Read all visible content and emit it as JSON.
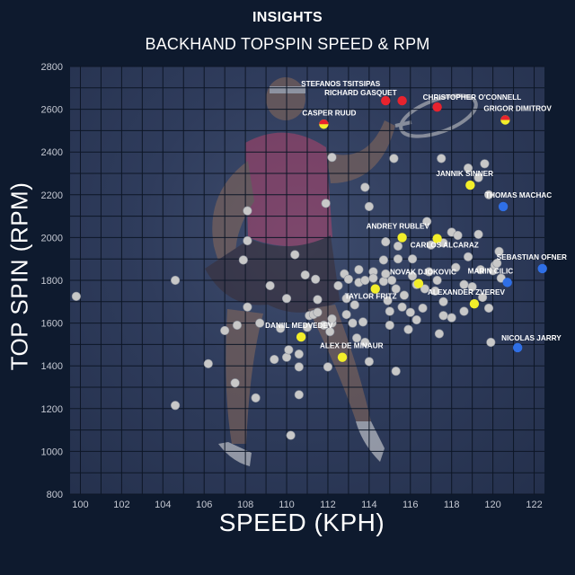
{
  "header": {
    "kicker": "INSIGHTS",
    "title": "BACKHAND TOPSPIN SPEED & RPM"
  },
  "colors": {
    "background": "#0e1a2e",
    "plot_overlay": "#2f3c5c",
    "grid": "#0d1626",
    "other_players": "#c8c8c8",
    "highlight_yellow": "#f2ee2a",
    "highlight_red": "#e8232e",
    "highlight_blue": "#2f6fe6"
  },
  "chart_data": {
    "type": "scatter",
    "title": "BACKHAND TOPSPIN SPEED & RPM",
    "xlabel": "SPEED (KPH)",
    "ylabel": "TOP SPIN (RPM)",
    "xlim": [
      99.5,
      122.5
    ],
    "ylim": [
      800,
      2800
    ],
    "xticks": [
      100,
      102,
      104,
      106,
      108,
      110,
      112,
      114,
      116,
      118,
      120,
      122
    ],
    "yticks": [
      800,
      1000,
      1200,
      1400,
      1600,
      1800,
      2000,
      2200,
      2400,
      2600,
      2800
    ],
    "grid": true,
    "labeled_points": [
      {
        "name": "STEFANOS TSITSIPAS",
        "x": 114.8,
        "y": 2640,
        "color": "red"
      },
      {
        "name": "RICHARD GASQUET",
        "x": 115.6,
        "y": 2640,
        "color": "red"
      },
      {
        "name": "CHRISTOPHER O'CONNELL",
        "x": 117.3,
        "y": 2610,
        "color": "red"
      },
      {
        "name": "CASPER RUUD",
        "x": 111.8,
        "y": 2530,
        "color": "red-yellow"
      },
      {
        "name": "GRIGOR DIMITROV",
        "x": 120.6,
        "y": 2550,
        "color": "red-yellow"
      },
      {
        "name": "JANNIK SINNER",
        "x": 118.9,
        "y": 2245,
        "color": "yellow"
      },
      {
        "name": "THOMAS MACHAC",
        "x": 120.5,
        "y": 2145,
        "color": "blue"
      },
      {
        "name": "ANDREY RUBLEV",
        "x": 115.6,
        "y": 2000,
        "color": "yellow"
      },
      {
        "name": "CARLOS ALCARAZ",
        "x": 117.3,
        "y": 1995,
        "color": "yellow"
      },
      {
        "name": "SEBASTIAN OFNER",
        "x": 122.4,
        "y": 1855,
        "color": "blue"
      },
      {
        "name": "NOVAK DJOKOVIC",
        "x": 116.4,
        "y": 1785,
        "color": "yellow"
      },
      {
        "name": "MARIN CILIC",
        "x": 120.7,
        "y": 1790,
        "color": "blue"
      },
      {
        "name": "TAYLOR FRITZ",
        "x": 114.3,
        "y": 1760,
        "color": "yellow"
      },
      {
        "name": "ALEXANDER ZVEREV",
        "x": 119.1,
        "y": 1690,
        "color": "yellow"
      },
      {
        "name": "DANIIL MEDVEDEV",
        "x": 110.7,
        "y": 1535,
        "color": "yellow"
      },
      {
        "name": "NICOLAS JARRY",
        "x": 121.2,
        "y": 1485,
        "color": "blue"
      },
      {
        "name": "ALEX DE MINAUR",
        "x": 112.7,
        "y": 1440,
        "color": "yellow"
      }
    ],
    "other_points": [
      [
        99.8,
        1725
      ],
      [
        104.6,
        1800
      ],
      [
        104.6,
        1215
      ],
      [
        106.2,
        1410
      ],
      [
        107.0,
        1565
      ],
      [
        107.5,
        1320
      ],
      [
        107.6,
        1590
      ],
      [
        107.9,
        1895
      ],
      [
        108.1,
        2125
      ],
      [
        108.1,
        1985
      ],
      [
        108.1,
        1675
      ],
      [
        108.5,
        1250
      ],
      [
        108.7,
        1600
      ],
      [
        109.2,
        1775
      ],
      [
        109.4,
        1430
      ],
      [
        109.7,
        1575
      ],
      [
        110.0,
        1715
      ],
      [
        110.0,
        1440
      ],
      [
        110.1,
        1475
      ],
      [
        110.2,
        1075
      ],
      [
        110.4,
        1920
      ],
      [
        110.6,
        1265
      ],
      [
        110.6,
        1395
      ],
      [
        110.6,
        1455
      ],
      [
        110.9,
        1825
      ],
      [
        111.0,
        1580
      ],
      [
        111.1,
        1635
      ],
      [
        111.3,
        1640
      ],
      [
        111.4,
        1805
      ],
      [
        111.5,
        1710
      ],
      [
        111.5,
        1650
      ],
      [
        111.8,
        1590
      ],
      [
        111.9,
        2160
      ],
      [
        112.0,
        1395
      ],
      [
        112.1,
        1560
      ],
      [
        112.2,
        1600
      ],
      [
        112.2,
        1620
      ],
      [
        112.2,
        2375
      ],
      [
        112.5,
        1775
      ],
      [
        112.8,
        1830
      ],
      [
        112.9,
        1640
      ],
      [
        112.9,
        1715
      ],
      [
        113.0,
        1805
      ],
      [
        113.2,
        1600
      ],
      [
        113.3,
        1685
      ],
      [
        113.4,
        1530
      ],
      [
        113.5,
        1790
      ],
      [
        113.5,
        1850
      ],
      [
        113.7,
        1605
      ],
      [
        113.8,
        1800
      ],
      [
        113.8,
        2235
      ],
      [
        113.8,
        1510
      ],
      [
        114.0,
        2145
      ],
      [
        114.0,
        1420
      ],
      [
        114.2,
        1840
      ],
      [
        114.2,
        1810
      ],
      [
        114.7,
        1895
      ],
      [
        114.7,
        1795
      ],
      [
        114.8,
        1980
      ],
      [
        114.8,
        1830
      ],
      [
        114.9,
        1705
      ],
      [
        115.0,
        1655
      ],
      [
        115.0,
        1590
      ],
      [
        115.1,
        1800
      ],
      [
        115.2,
        2370
      ],
      [
        115.3,
        1375
      ],
      [
        115.3,
        1760
      ],
      [
        115.4,
        1960
      ],
      [
        115.4,
        1900
      ],
      [
        115.6,
        1675
      ],
      [
        115.7,
        1730
      ],
      [
        115.9,
        1570
      ],
      [
        116.0,
        1650
      ],
      [
        116.1,
        1900
      ],
      [
        116.1,
        1820
      ],
      [
        116.3,
        1780
      ],
      [
        116.3,
        1615
      ],
      [
        116.6,
        1670
      ],
      [
        116.7,
        1760
      ],
      [
        116.8,
        2075
      ],
      [
        116.9,
        1840
      ],
      [
        117.0,
        1965
      ],
      [
        117.2,
        1750
      ],
      [
        117.3,
        1800
      ],
      [
        117.4,
        1550
      ],
      [
        117.5,
        2370
      ],
      [
        117.6,
        1700
      ],
      [
        117.6,
        1635
      ],
      [
        117.6,
        1975
      ],
      [
        118.0,
        1625
      ],
      [
        118.0,
        2025
      ],
      [
        118.2,
        1860
      ],
      [
        118.3,
        2010
      ],
      [
        118.6,
        1780
      ],
      [
        118.6,
        1655
      ],
      [
        118.8,
        1910
      ],
      [
        118.8,
        2325
      ],
      [
        119.0,
        1770
      ],
      [
        119.3,
        2280
      ],
      [
        119.3,
        2015
      ],
      [
        119.4,
        1850
      ],
      [
        119.5,
        1720
      ],
      [
        119.6,
        2345
      ],
      [
        119.8,
        1670
      ],
      [
        119.8,
        2200
      ],
      [
        119.9,
        1510
      ],
      [
        120.0,
        1845
      ],
      [
        120.1,
        1870
      ],
      [
        120.2,
        1880
      ],
      [
        120.3,
        1935
      ],
      [
        120.4,
        1810
      ]
    ]
  }
}
